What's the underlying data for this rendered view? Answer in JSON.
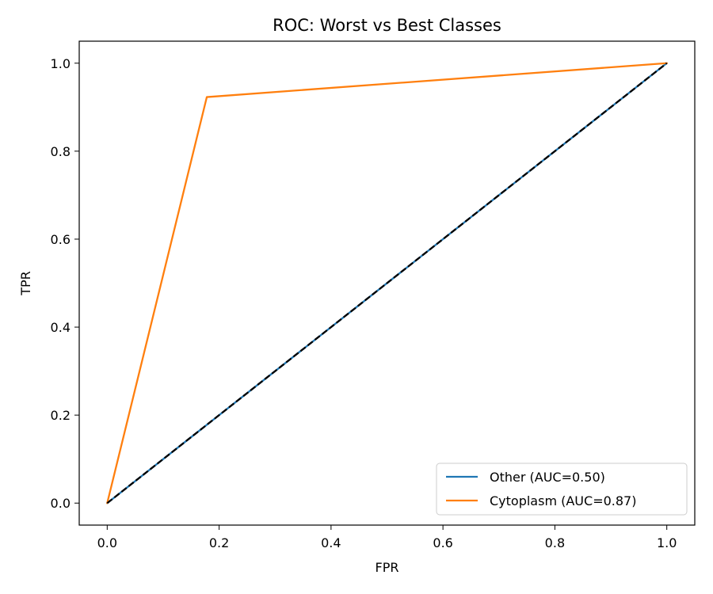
{
  "chart_data": {
    "type": "line",
    "title": "ROC: Worst vs Best Classes",
    "xlabel": "FPR",
    "ylabel": "TPR",
    "xlim": [
      -0.05,
      1.05
    ],
    "ylim": [
      -0.05,
      1.05
    ],
    "xticks": [
      "0.0",
      "0.2",
      "0.4",
      "0.6",
      "0.8",
      "1.0"
    ],
    "yticks": [
      "0.0",
      "0.2",
      "0.4",
      "0.6",
      "0.8",
      "1.0"
    ],
    "grid": false,
    "legend_position": "bottom-right",
    "series": [
      {
        "name": "Other (AUC=0.50)",
        "color": "#1f77b4",
        "x": [
          0.0,
          1.0
        ],
        "y": [
          0.0,
          1.0
        ]
      },
      {
        "name": "Cytoplasm (AUC=0.87)",
        "color": "#ff7f0e",
        "x": [
          0.0,
          0.178,
          1.0
        ],
        "y": [
          0.0,
          0.923,
          1.0
        ]
      }
    ],
    "reference_line": {
      "x": [
        0.0,
        1.0
      ],
      "y": [
        0.0,
        1.0
      ],
      "color": "#000000",
      "style": "dashed"
    }
  }
}
